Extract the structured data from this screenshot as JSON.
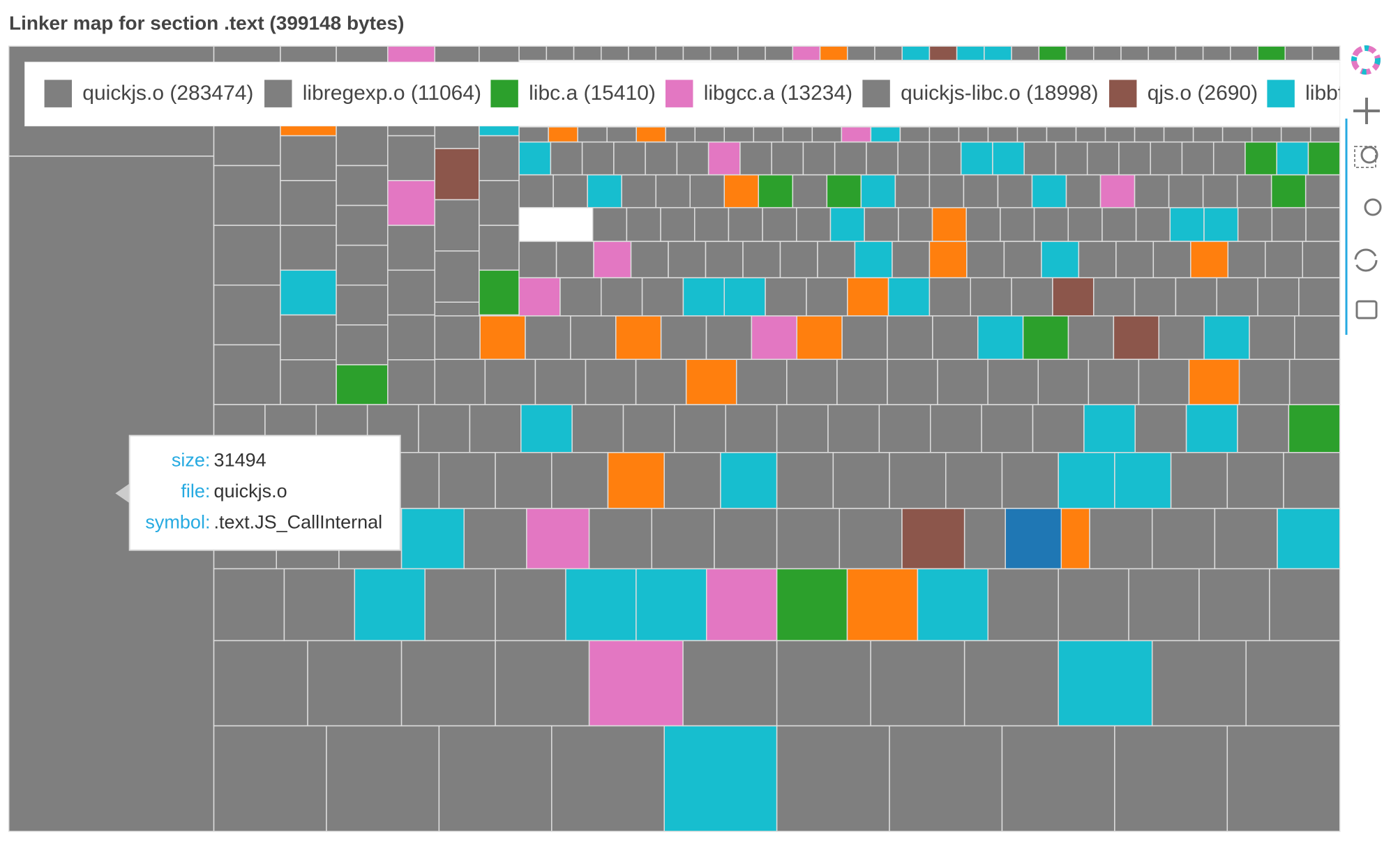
{
  "title": "Linker map for section .text (399148 bytes)",
  "legend": [
    {
      "label": "quickjs.o (283474)",
      "color": "#7f7f7f"
    },
    {
      "label": "libregexp.o (11064)",
      "color": "#7f7f7f"
    },
    {
      "label": "libc.a (15410)",
      "color": "#2ca02c"
    },
    {
      "label": "libgcc.a (13234)",
      "color": "#e377c2"
    },
    {
      "label": "quickjs-libc.o (18998)",
      "color": "#7f7f7f"
    },
    {
      "label": "qjs.o (2690)",
      "color": "#8c564b"
    },
    {
      "label": "libbf",
      "color": "#17becf"
    }
  ],
  "tooltip": [
    {
      "key": "size:",
      "value": "31494"
    },
    {
      "key": "file:",
      "value": "quickjs.o"
    },
    {
      "key": "symbol:",
      "value": ".text.JS_CallInternal"
    }
  ]
}
